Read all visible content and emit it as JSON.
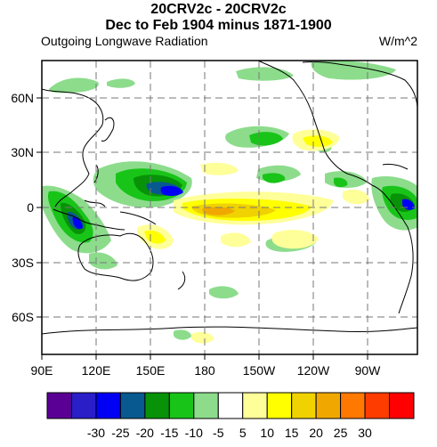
{
  "titles": {
    "line1": "20CRV2c - 20CRV2c",
    "line2": "Dec to Feb 1904 minus 1871-1900",
    "left": "Outgoing Longwave Radiation",
    "right": "W/m^2"
  },
  "axes": {
    "lon_labels": [
      "90E",
      "120E",
      "150E",
      "180",
      "150W",
      "120W",
      "90W"
    ],
    "lat_labels": [
      "60N",
      "30N",
      "0",
      "30S",
      "60S"
    ]
  },
  "colorbar": {
    "colors": [
      "#5a0095",
      "#2a1ec8",
      "#0000f5",
      "#08598f",
      "#089208",
      "#18c418",
      "#8cdc8c",
      "#ffffff",
      "#ffff99",
      "#ffff00",
      "#f0d200",
      "#f0a800",
      "#ff7800",
      "#ff3c00",
      "#ff0000"
    ],
    "labels": [
      "-30",
      "-25",
      "-20",
      "-15",
      "-10",
      "-5",
      "5",
      "10",
      "15",
      "20",
      "25",
      "30"
    ]
  },
  "colors": {
    "light_green": "#8cdc8c",
    "green": "#18c418",
    "dark_green": "#089208",
    "teal": "#08598f",
    "blue": "#0000f5",
    "dark_blue": "#2a1ec8",
    "light_yellow": "#ffff99",
    "yellow": "#ffff00",
    "gold": "#f0d200",
    "orange": "#f0a800"
  }
}
